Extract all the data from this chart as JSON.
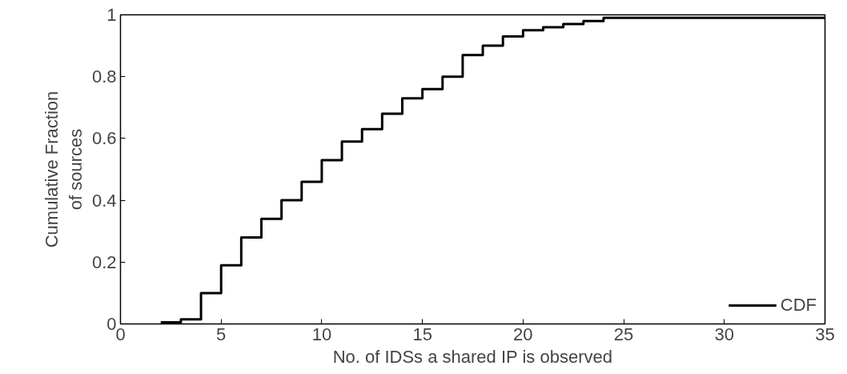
{
  "chart_data": {
    "type": "step",
    "xlabel": "No. of IDSs a shared IP is observed",
    "ylabel": "Cumulative Fraction\nof sources",
    "x": [
      2,
      3,
      4,
      5,
      6,
      7,
      8,
      9,
      10,
      11,
      12,
      13,
      14,
      15,
      16,
      17,
      18,
      19,
      20,
      21,
      22,
      23,
      24,
      35
    ],
    "series": [
      {
        "name": "CDF",
        "color": "#000000",
        "values": [
          0.005,
          0.015,
          0.1,
          0.19,
          0.28,
          0.34,
          0.4,
          0.46,
          0.53,
          0.59,
          0.63,
          0.68,
          0.73,
          0.76,
          0.8,
          0.87,
          0.9,
          0.93,
          0.95,
          0.96,
          0.97,
          0.98,
          0.99,
          0.99
        ]
      }
    ],
    "xlim": [
      0,
      35
    ],
    "ylim": [
      0,
      1
    ],
    "xticks": [
      0,
      5,
      10,
      15,
      20,
      25,
      30,
      35
    ],
    "yticks": [
      0,
      0.2,
      0.4,
      0.6,
      0.8,
      1
    ],
    "legend": "bottom right",
    "grid": false,
    "line_style": "solid",
    "marker": "none"
  }
}
